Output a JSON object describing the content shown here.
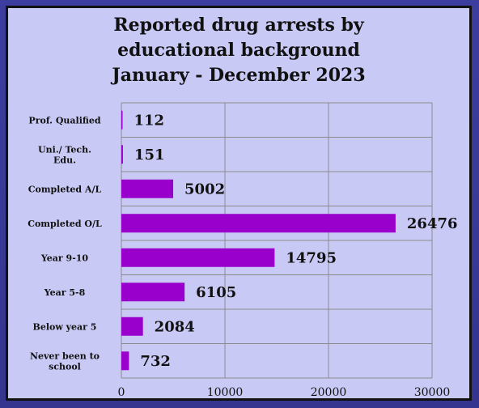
{
  "chart_data": {
    "type": "bar",
    "orientation": "horizontal",
    "title_lines": [
      "Reported drug arrests by",
      "educational background",
      "January - December  2023"
    ],
    "categories": [
      [
        "Prof. Qualified"
      ],
      [
        "Uni./ Tech.",
        "Edu."
      ],
      [
        "Completed A/L"
      ],
      [
        "Completed O/L"
      ],
      [
        "Year 9-10"
      ],
      [
        "Year 5-8"
      ],
      [
        "Below year 5"
      ],
      [
        "Never been to",
        "school"
      ]
    ],
    "values": [
      112,
      151,
      5002,
      26476,
      14795,
      6105,
      2084,
      732
    ],
    "xlim": [
      0,
      30000
    ],
    "xticks": [
      0,
      10000,
      20000,
      30000
    ],
    "grid": true,
    "colors": {
      "bar": "#9900cc",
      "plot_bg": "#c9c9f5",
      "grid": "#8a8a8a"
    }
  }
}
